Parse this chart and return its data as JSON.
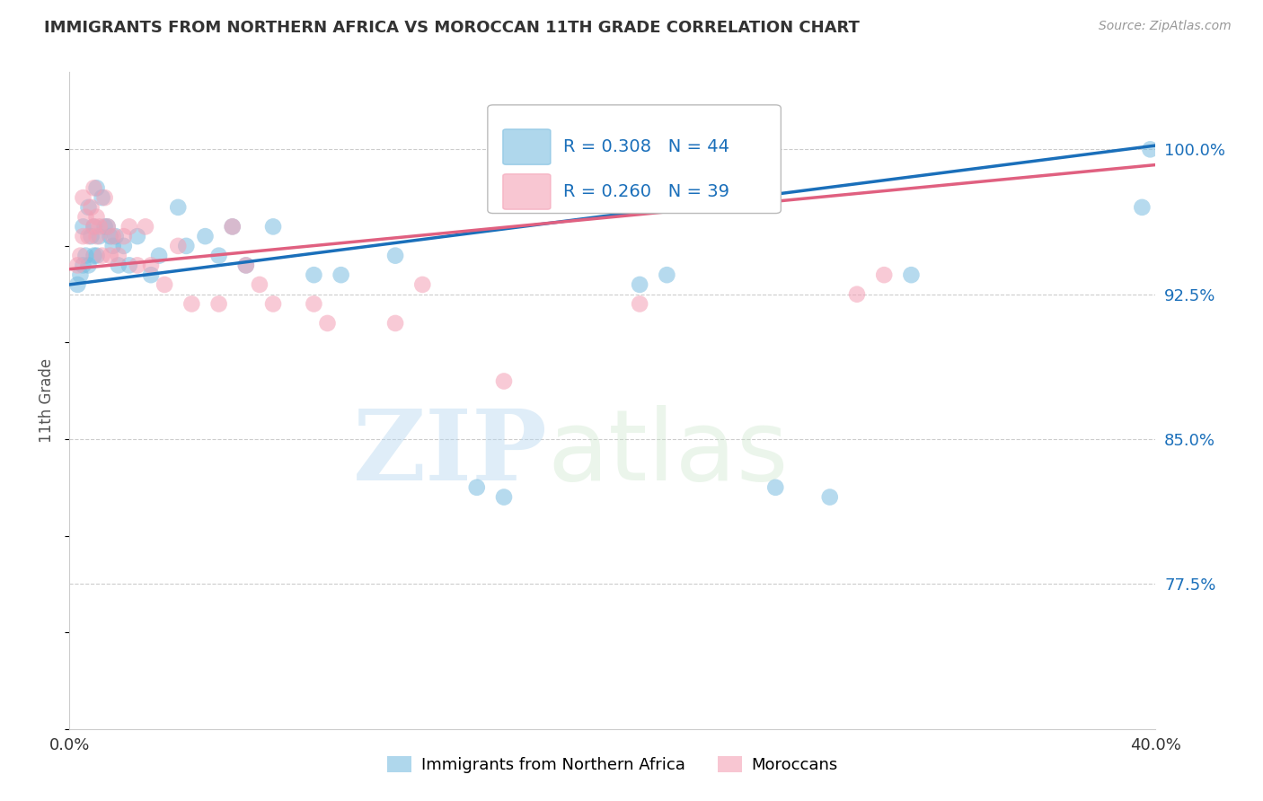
{
  "title": "IMMIGRANTS FROM NORTHERN AFRICA VS MOROCCAN 11TH GRADE CORRELATION CHART",
  "source": "Source: ZipAtlas.com",
  "ylabel": "11th Grade",
  "xlim": [
    0.0,
    0.4
  ],
  "ylim": [
    0.7,
    1.04
  ],
  "y_ticks": [
    0.775,
    0.85,
    0.925,
    1.0
  ],
  "y_tick_labels": [
    "77.5%",
    "85.0%",
    "92.5%",
    "100.0%"
  ],
  "blue_R": 0.308,
  "blue_N": 44,
  "pink_R": 0.26,
  "pink_N": 39,
  "blue_color": "#7bbde0",
  "pink_color": "#f4a0b5",
  "trendline_blue": "#1a6fba",
  "trendline_pink": "#e06080",
  "watermark_zip": "ZIP",
  "watermark_atlas": "atlas",
  "blue_x": [
    0.003,
    0.004,
    0.005,
    0.005,
    0.006,
    0.007,
    0.007,
    0.008,
    0.009,
    0.009,
    0.01,
    0.01,
    0.011,
    0.012,
    0.013,
    0.014,
    0.015,
    0.016,
    0.017,
    0.018,
    0.02,
    0.022,
    0.025,
    0.03,
    0.033,
    0.04,
    0.043,
    0.05,
    0.055,
    0.06,
    0.065,
    0.075,
    0.09,
    0.1,
    0.12,
    0.15,
    0.16,
    0.21,
    0.22,
    0.26,
    0.28,
    0.31,
    0.395,
    0.398
  ],
  "blue_y": [
    0.93,
    0.935,
    0.94,
    0.96,
    0.945,
    0.94,
    0.97,
    0.955,
    0.945,
    0.96,
    0.945,
    0.98,
    0.955,
    0.975,
    0.96,
    0.96,
    0.955,
    0.95,
    0.955,
    0.94,
    0.95,
    0.94,
    0.955,
    0.935,
    0.945,
    0.97,
    0.95,
    0.955,
    0.945,
    0.96,
    0.94,
    0.96,
    0.935,
    0.935,
    0.945,
    0.825,
    0.82,
    0.93,
    0.935,
    0.825,
    0.82,
    0.935,
    0.97,
    1.0
  ],
  "pink_x": [
    0.003,
    0.004,
    0.005,
    0.005,
    0.006,
    0.007,
    0.008,
    0.009,
    0.009,
    0.01,
    0.01,
    0.011,
    0.012,
    0.013,
    0.014,
    0.015,
    0.016,
    0.018,
    0.02,
    0.022,
    0.025,
    0.028,
    0.03,
    0.035,
    0.04,
    0.045,
    0.055,
    0.06,
    0.065,
    0.07,
    0.075,
    0.09,
    0.095,
    0.12,
    0.13,
    0.16,
    0.21,
    0.29,
    0.3
  ],
  "pink_y": [
    0.94,
    0.945,
    0.955,
    0.975,
    0.965,
    0.955,
    0.97,
    0.96,
    0.98,
    0.955,
    0.965,
    0.96,
    0.945,
    0.975,
    0.96,
    0.945,
    0.955,
    0.945,
    0.955,
    0.96,
    0.94,
    0.96,
    0.94,
    0.93,
    0.95,
    0.92,
    0.92,
    0.96,
    0.94,
    0.93,
    0.92,
    0.92,
    0.91,
    0.91,
    0.93,
    0.88,
    0.92,
    0.925,
    0.935
  ]
}
